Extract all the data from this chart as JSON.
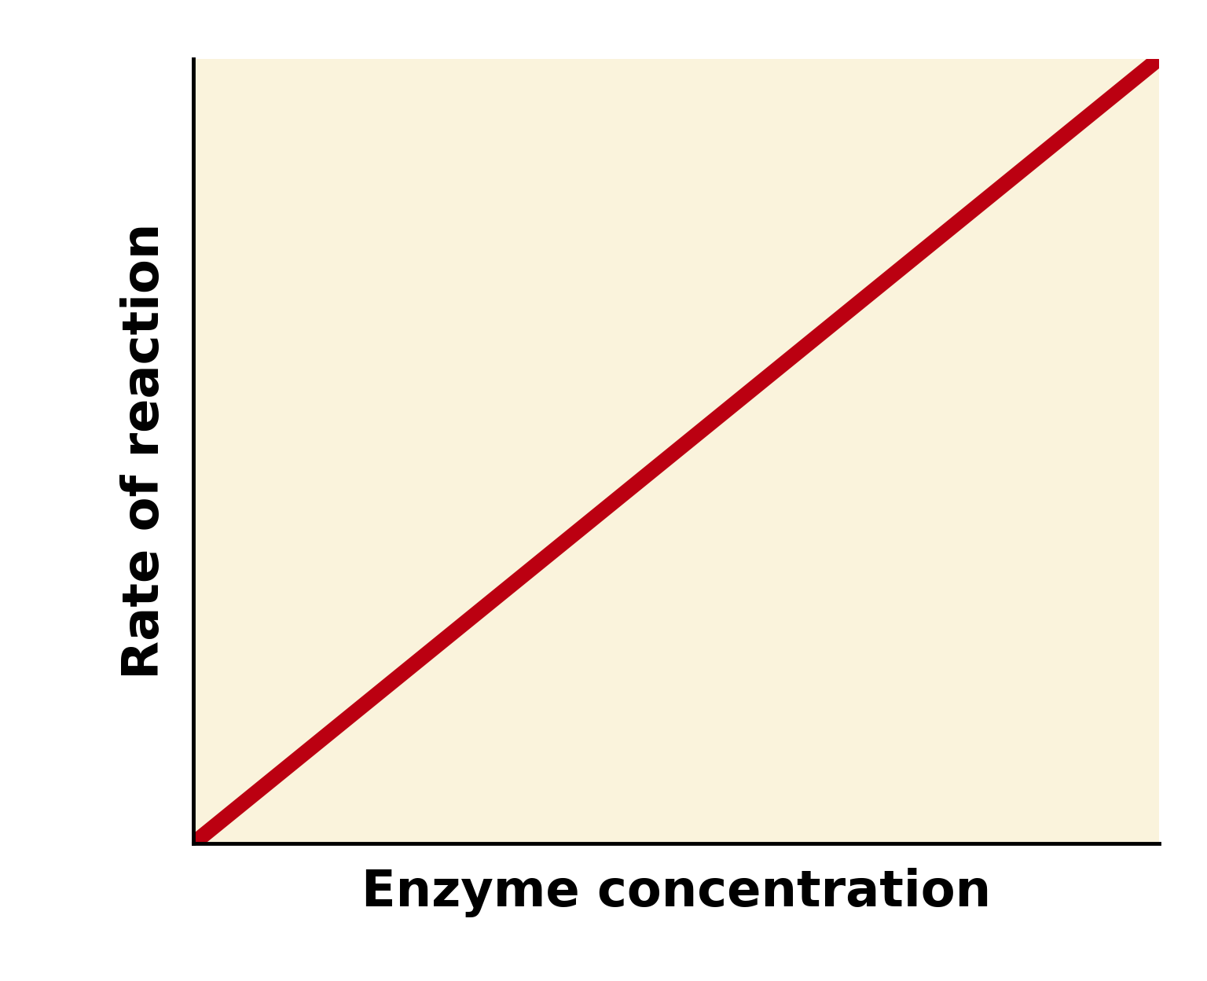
{
  "xlabel": "Enzyme concentration",
  "ylabel": "Rate of reaction",
  "background_color": "#FAF3DC",
  "line_color": "#BB0011",
  "line_x": [
    0,
    1
  ],
  "line_y": [
    0,
    1
  ],
  "line_width": 14,
  "xlim": [
    0,
    1
  ],
  "ylim": [
    0,
    1
  ],
  "xlabel_fontsize": 46,
  "ylabel_fontsize": 46,
  "axis_linewidth": 3.5,
  "figure_bg": "#ffffff"
}
